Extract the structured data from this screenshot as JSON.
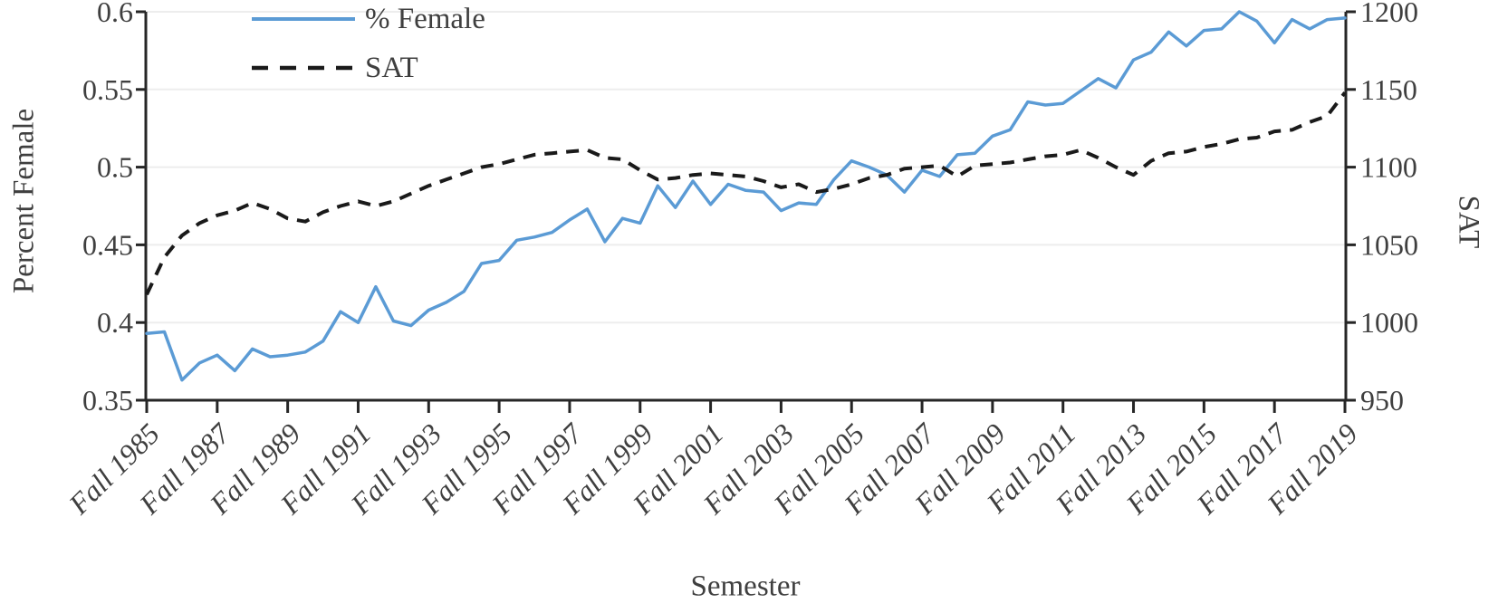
{
  "chart_data": {
    "type": "line",
    "title": "",
    "x_axis": {
      "title": "Semester",
      "tick_labels": [
        "Fall 1985",
        "Fall 1987",
        "Fall 1989",
        "Fall 1991",
        "Fall 1993",
        "Fall 1995",
        "Fall 1997",
        "Fall 1999",
        "Fall 2001",
        "Fall 2003",
        "Fall 2005",
        "Fall 2007",
        "Fall 2009",
        "Fall 2011",
        "Fall 2013",
        "Fall 2015",
        "Fall 2017",
        "Fall 2019"
      ],
      "ticks_every_n_points": 4,
      "points_per_year": 2,
      "x_start": "Fall 1985",
      "x_end": "Fall 2019"
    },
    "left_axis": {
      "title": "Percent Female",
      "min": 0.35,
      "max": 0.6,
      "tick_labels": [
        "0.35",
        "0.4",
        "0.45",
        "0.5",
        "0.55",
        "0.6"
      ]
    },
    "right_axis": {
      "title": "SAT",
      "min": 950,
      "max": 1200,
      "tick_labels": [
        "950",
        "1000",
        "1050",
        "1100",
        "1150",
        "1200"
      ]
    },
    "legend": {
      "position": "top-inside",
      "entries": [
        {
          "label": "% Female",
          "color": "#5B9BD5",
          "line_style": "solid"
        },
        {
          "label": "SAT",
          "color": "#1A1A1A",
          "line_style": "dashed"
        }
      ]
    },
    "grid": "horizontal",
    "series": [
      {
        "name": "% Female",
        "axis": "left",
        "color": "#5B9BD5",
        "line_style": "solid",
        "values": [
          0.393,
          0.394,
          0.363,
          0.374,
          0.379,
          0.369,
          0.383,
          0.378,
          0.379,
          0.381,
          0.388,
          0.407,
          0.4,
          0.423,
          0.401,
          0.398,
          0.408,
          0.413,
          0.42,
          0.438,
          0.44,
          0.453,
          0.455,
          0.458,
          0.466,
          0.473,
          0.452,
          0.467,
          0.464,
          0.488,
          0.474,
          0.491,
          0.476,
          0.489,
          0.485,
          0.484,
          0.472,
          0.477,
          0.476,
          0.492,
          0.504,
          0.5,
          0.495,
          0.484,
          0.498,
          0.494,
          0.508,
          0.509,
          0.52,
          0.524,
          0.542,
          0.54,
          0.541,
          0.549,
          0.557,
          0.551,
          0.569,
          0.574,
          0.587,
          0.578,
          0.588,
          0.589,
          0.6,
          0.594,
          0.58,
          0.595,
          0.589,
          0.595,
          0.596
        ]
      },
      {
        "name": "SAT",
        "axis": "right",
        "color": "#1A1A1A",
        "line_style": "dashed",
        "values": [
          1018,
          1042,
          1056,
          1064,
          1069,
          1072,
          1077,
          1073,
          1067,
          1065,
          1071,
          1075,
          1078,
          1075,
          1078,
          1083,
          1088,
          1092,
          1096,
          1100,
          1102,
          1105,
          1108,
          1109,
          1110,
          1111,
          1106,
          1105,
          1098,
          1092,
          1093,
          1095,
          1096,
          1095,
          1094,
          1091,
          1087,
          1089,
          1084,
          1086,
          1089,
          1093,
          1095,
          1099,
          1100,
          1101,
          1094,
          1101,
          1102,
          1103,
          1105,
          1107,
          1108,
          1111,
          1106,
          1100,
          1095,
          1104,
          1109,
          1110,
          1113,
          1115,
          1118,
          1119,
          1123,
          1124,
          1129,
          1133,
          1148
        ]
      }
    ]
  },
  "colors": {
    "female_line": "#5B9BD5",
    "sat_line": "#1A1A1A",
    "text": "#3F3F3F",
    "gridline": "#EDEDED",
    "axis": "#262626"
  }
}
